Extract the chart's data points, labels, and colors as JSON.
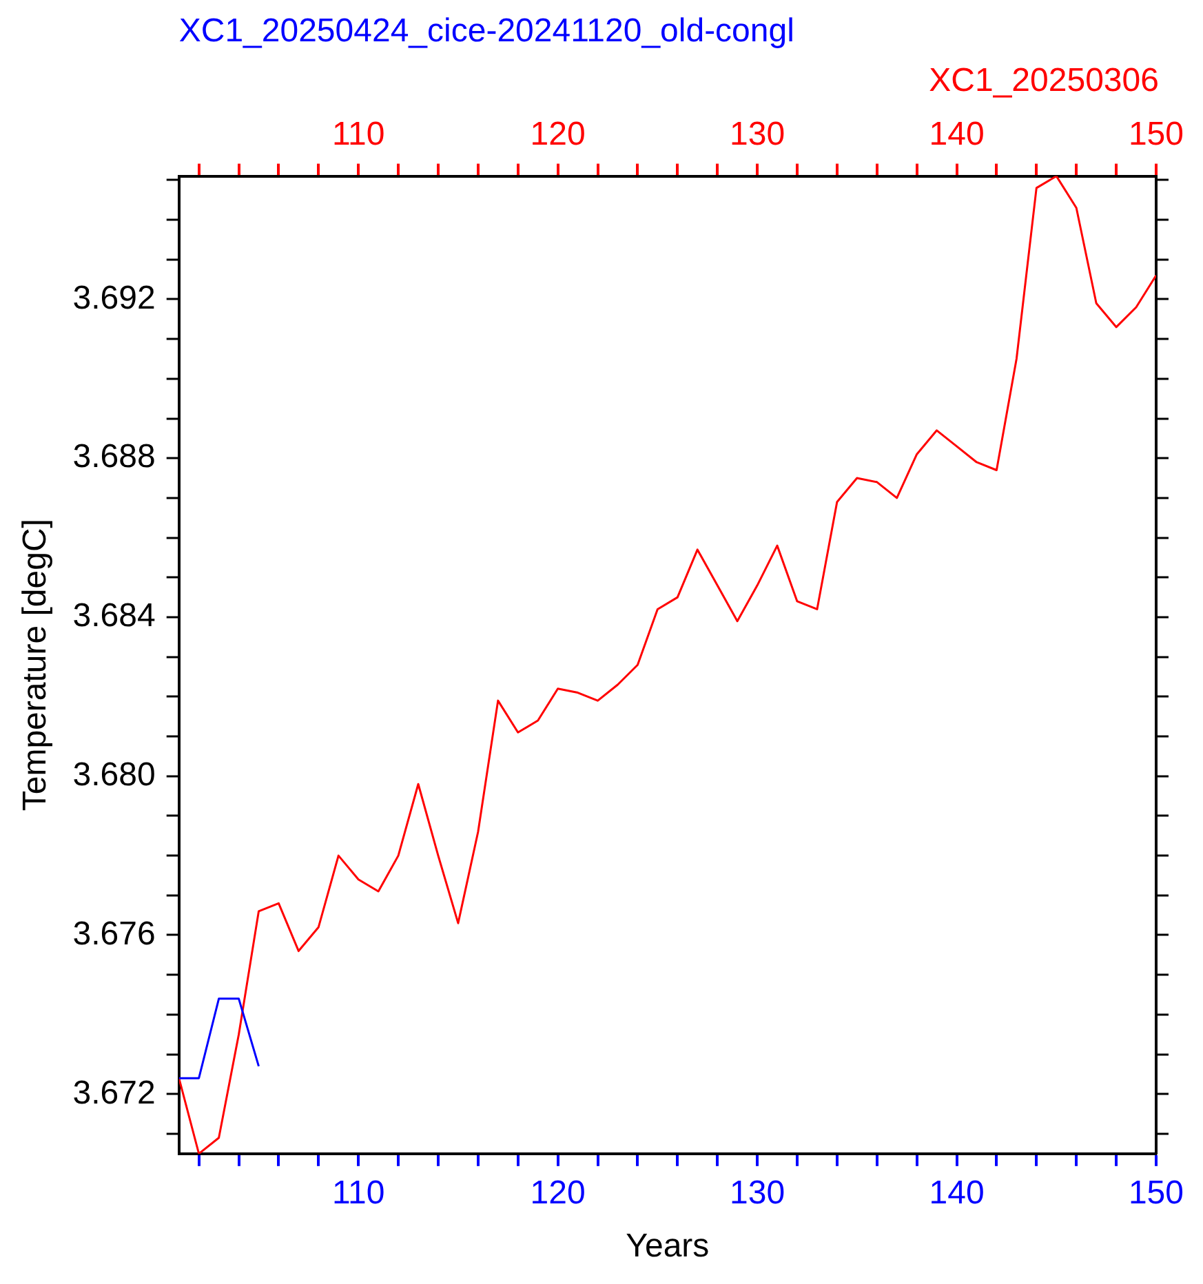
{
  "chart_data": {
    "type": "line",
    "xlabel": "Years",
    "ylabel": "Temperature [degC]",
    "legend": "top",
    "xlim": [
      101,
      150
    ],
    "xticks": [
      {
        "value": 102,
        "label": null
      },
      {
        "value": 104,
        "label": null
      },
      {
        "value": 106,
        "label": null
      },
      {
        "value": 108,
        "label": null
      },
      110,
      {
        "value": 112,
        "label": null
      },
      {
        "value": 114,
        "label": null
      },
      {
        "value": 116,
        "label": null
      },
      {
        "value": 118,
        "label": null
      },
      120,
      {
        "value": 122,
        "label": null
      },
      {
        "value": 124,
        "label": null
      },
      {
        "value": 126,
        "label": null
      },
      {
        "value": 128,
        "label": null
      },
      130,
      {
        "value": 132,
        "label": null
      },
      {
        "value": 134,
        "label": null
      },
      {
        "value": 136,
        "label": null
      },
      {
        "value": 138,
        "label": null
      },
      140,
      {
        "value": 142,
        "label": null
      },
      {
        "value": 144,
        "label": null
      },
      {
        "value": 146,
        "label": null
      },
      {
        "value": 148,
        "label": null
      },
      150
    ],
    "x2lim": [
      101,
      150
    ],
    "x2ticks": [
      {
        "value": 102,
        "label": null
      },
      {
        "value": 104,
        "label": null
      },
      {
        "value": 106,
        "label": null
      },
      {
        "value": 108,
        "label": null
      },
      110,
      {
        "value": 112,
        "label": null
      },
      {
        "value": 114,
        "label": null
      },
      {
        "value": 116,
        "label": null
      },
      {
        "value": 118,
        "label": null
      },
      120,
      {
        "value": 122,
        "label": null
      },
      {
        "value": 124,
        "label": null
      },
      {
        "value": 126,
        "label": null
      },
      {
        "value": 128,
        "label": null
      },
      130,
      {
        "value": 132,
        "label": null
      },
      {
        "value": 134,
        "label": null
      },
      {
        "value": 136,
        "label": null
      },
      {
        "value": 138,
        "label": null
      },
      140,
      {
        "value": 142,
        "label": null
      },
      {
        "value": 144,
        "label": null
      },
      {
        "value": 146,
        "label": null
      },
      {
        "value": 148,
        "label": null
      },
      150
    ],
    "ylim": [
      3.6705,
      3.6951
    ],
    "yticks": [
      {
        "value": 3.671,
        "label": null
      },
      3.672,
      {
        "value": 3.673,
        "label": null
      },
      {
        "value": 3.674,
        "label": null
      },
      {
        "value": 3.675,
        "label": null
      },
      3.676,
      {
        "value": 3.677,
        "label": null
      },
      {
        "value": 3.678,
        "label": null
      },
      {
        "value": 3.679,
        "label": null
      },
      {
        "value": 3.68,
        "label": "3.680"
      },
      {
        "value": 3.681,
        "label": null
      },
      {
        "value": 3.682,
        "label": null
      },
      {
        "value": 3.683,
        "label": null
      },
      3.684,
      {
        "value": 3.685,
        "label": null
      },
      {
        "value": 3.686,
        "label": null
      },
      {
        "value": 3.687,
        "label": null
      },
      3.688,
      {
        "value": 3.689,
        "label": null
      },
      {
        "value": 3.69,
        "label": null
      },
      {
        "value": 3.691,
        "label": null
      },
      3.692,
      {
        "value": 3.693,
        "label": null
      },
      {
        "value": 3.694,
        "label": null
      },
      {
        "value": 3.695,
        "label": null
      }
    ],
    "marker": "none",
    "line_style": "solid",
    "series": [
      {
        "name": "XC1_20250424_cice-20241120_old-congl",
        "color": "#0000ff",
        "x": [
          101,
          102,
          103,
          104,
          105
        ],
        "values": [
          3.6724,
          3.6724,
          3.6744,
          3.6744,
          3.6727
        ]
      },
      {
        "name": "XC1_20250306",
        "color": "#ff0000",
        "axis": "x2",
        "x": [
          101,
          102,
          103,
          104,
          105,
          106,
          107,
          108,
          109,
          110,
          111,
          112,
          113,
          114,
          115,
          116,
          117,
          118,
          119,
          120,
          121,
          122,
          123,
          124,
          125,
          126,
          127,
          128,
          129,
          130,
          131,
          132,
          133,
          134,
          135,
          136,
          137,
          138,
          139,
          140,
          141,
          142,
          143,
          144,
          145,
          146,
          147,
          148,
          149,
          150
        ],
        "values": [
          3.6724,
          3.6705,
          3.6709,
          3.6735,
          3.6766,
          3.6768,
          3.6756,
          3.6762,
          3.678,
          3.6774,
          3.6771,
          3.678,
          3.6798,
          3.678,
          3.6763,
          3.6786,
          3.6819,
          3.6811,
          3.6814,
          3.6822,
          3.6821,
          3.6819,
          3.6823,
          3.6828,
          3.6842,
          3.6845,
          3.6857,
          3.6848,
          3.6839,
          3.6848,
          3.6858,
          3.6844,
          3.6842,
          3.6869,
          3.6875,
          3.6874,
          3.687,
          3.6881,
          3.6887,
          3.6883,
          3.6879,
          3.6877,
          3.6905,
          3.6948,
          3.6951,
          3.6943,
          3.6919,
          3.6913,
          3.6918,
          3.6926
        ]
      }
    ]
  }
}
